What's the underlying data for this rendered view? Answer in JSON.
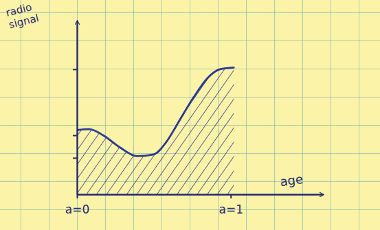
{
  "chart_data": {
    "type": "area",
    "x_label": "age",
    "y_label": "radio signal",
    "x": [
      0,
      0.08,
      0.17,
      0.28,
      0.39,
      0.5,
      0.58,
      0.67,
      0.76,
      0.85,
      0.93,
      1.02
    ],
    "values": [
      3.7,
      3.75,
      3.4,
      2.7,
      2.2,
      2.3,
      3.0,
      4.3,
      5.6,
      6.7,
      7.2,
      7.3
    ],
    "color": "#2b3990",
    "xlim": [
      0,
      1.6
    ],
    "xticks": [
      {
        "value": 0,
        "label": "a=0"
      },
      {
        "value": 1,
        "label": "a=1"
      }
    ],
    "ylim": [
      0,
      10
    ],
    "yticks": [
      2.1,
      3.4,
      7.2
    ],
    "tick_labels": "x",
    "grid": false
  }
}
